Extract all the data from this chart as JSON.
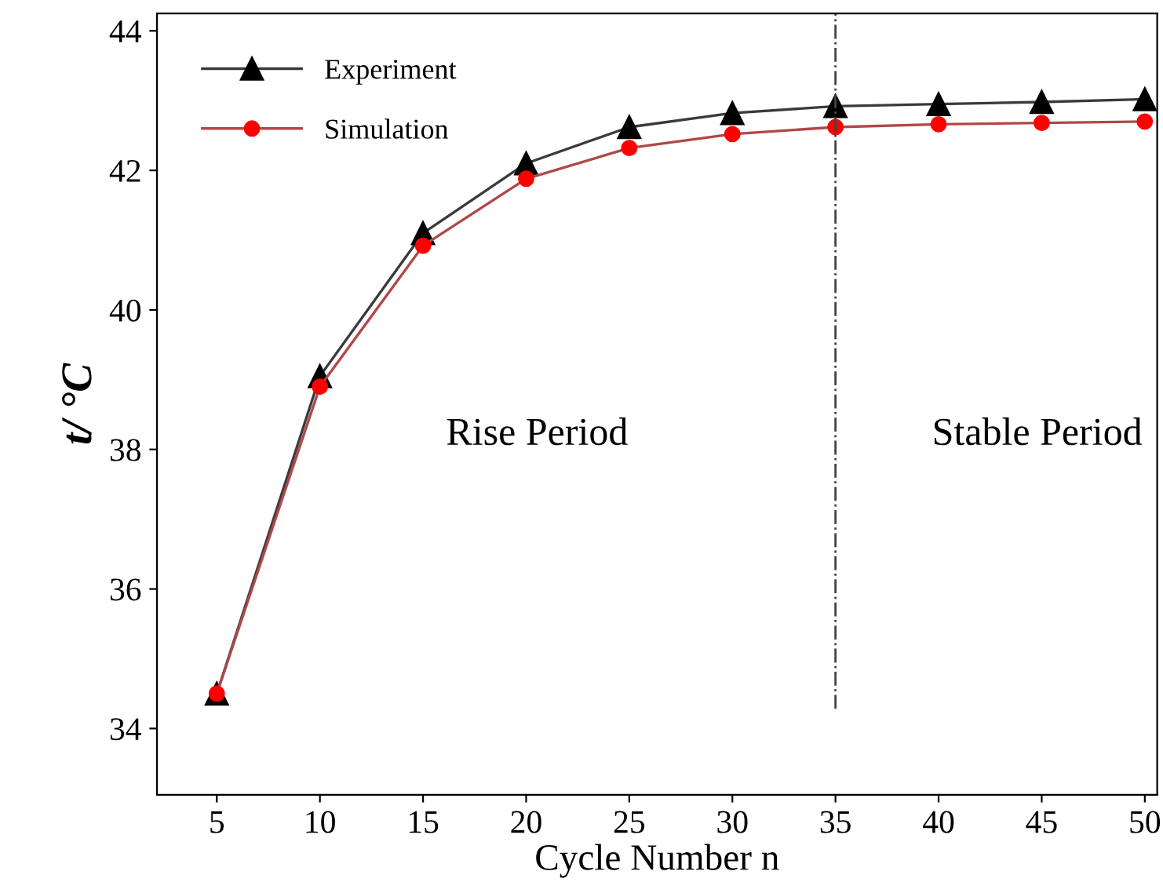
{
  "chart_data": {
    "type": "line",
    "xlabel": "Cycle Number n",
    "ylabel": "t/ °C",
    "x": [
      5,
      10,
      15,
      20,
      25,
      30,
      35,
      40,
      45,
      50
    ],
    "series": [
      {
        "name": "Experiment",
        "color": "#3a3a3a",
        "marker": "triangle",
        "values": [
          34.5,
          39.05,
          41.1,
          42.1,
          42.62,
          42.82,
          42.92,
          42.95,
          42.98,
          43.02
        ]
      },
      {
        "name": "Simulation",
        "color": "#b04848",
        "marker": "circle",
        "values": [
          34.5,
          38.9,
          40.92,
          41.88,
          42.32,
          42.52,
          42.62,
          42.66,
          42.68,
          42.7
        ]
      }
    ],
    "xlim": [
      2.1,
      50.6
    ],
    "xticks": [
      5,
      10,
      15,
      20,
      25,
      30,
      35,
      40,
      45,
      50
    ],
    "ylim": [
      33.05,
      44.25
    ],
    "yticks": [
      34,
      36,
      38,
      40,
      42,
      44
    ],
    "ref_lines": [
      {
        "axis": "x",
        "value": 35,
        "color": "#444444",
        "line_style": "dashdot"
      }
    ],
    "annotations": [
      "Rise Period",
      "Stable Period"
    ],
    "legend": "top left",
    "grid": false
  }
}
